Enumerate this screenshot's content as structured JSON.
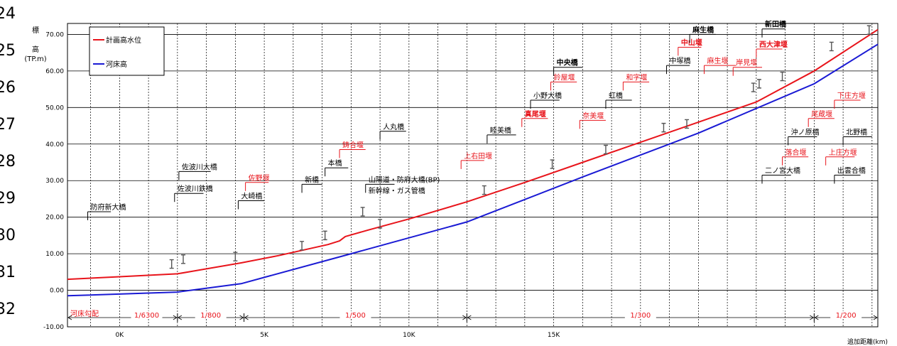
{
  "chart_data": {
    "type": "line",
    "row_numbers": [
      "24",
      "25",
      "26",
      "27",
      "28",
      "29",
      "30",
      "31",
      "32"
    ],
    "ylabel": [
      "標",
      "高",
      "(TP.m)"
    ],
    "xlabel": "追加距離(km)",
    "ylim": [
      -10,
      73
    ],
    "xlim": [
      -1.8,
      26.2
    ],
    "yticks": [
      {
        "value": 70,
        "label": "70.00"
      },
      {
        "value": 60,
        "label": "60.00"
      },
      {
        "value": 50,
        "label": "50.00"
      },
      {
        "value": 40,
        "label": "40.00"
      },
      {
        "value": 30,
        "label": "30.00"
      },
      {
        "value": 20,
        "label": "20.00"
      },
      {
        "value": 10,
        "label": "10.00"
      },
      {
        "value": 0,
        "label": "0.00"
      },
      {
        "value": -10,
        "label": "-10.00"
      }
    ],
    "xticks": [
      {
        "value": 0,
        "label": "0K"
      },
      {
        "value": 5,
        "label": "5K"
      },
      {
        "value": 10,
        "label": "10K"
      },
      {
        "value": 15,
        "label": "15K"
      }
    ],
    "grid": true,
    "legend_position": "top-left",
    "colors": {
      "planned": "#e8141b",
      "bed": "#1a1ad4",
      "red_label": "#e8141b"
    },
    "series": [
      {
        "name": "計画高水位",
        "color": "#e8141b",
        "x": [
          -1.8,
          0,
          2,
          4.2,
          5.5,
          7.2,
          7.6,
          7.8,
          8.6,
          10,
          12,
          14,
          16,
          18,
          20,
          22,
          24,
          26.2
        ],
        "y": [
          3.0,
          3.7,
          4.5,
          7.5,
          9.5,
          12.5,
          13.5,
          14.7,
          16.5,
          19.5,
          24.2,
          29.5,
          35,
          40.5,
          46,
          51.5,
          60,
          71.3
        ]
      },
      {
        "name": "河床高",
        "color": "#1a1ad4",
        "x": [
          -1.8,
          2,
          4.2,
          8,
          12,
          16,
          20,
          24,
          26.2
        ],
        "y": [
          -1.5,
          -0.5,
          1.8,
          10,
          18.7,
          31,
          43,
          56.5,
          67.3
        ]
      }
    ],
    "gradient_segments": [
      {
        "label": "河床勾配",
        "from": -1.8,
        "to": -0.4,
        "show_line": false
      },
      {
        "label": "1/6300",
        "from": -1.8,
        "to": 2,
        "show_line": true
      },
      {
        "label": "1/800",
        "from": 2,
        "to": 4.3,
        "show_line": true
      },
      {
        "label": "1/500",
        "from": 4.3,
        "to": 12,
        "show_line": true
      },
      {
        "label": "1/300",
        "from": 12,
        "to": 24,
        "show_line": true
      },
      {
        "label": "1/200",
        "from": 24,
        "to": 26.2,
        "show_line": true
      }
    ],
    "annotations": [
      {
        "text": "防府新大橋",
        "x": -1.1,
        "y": 21.5,
        "len": 0.8,
        "bold": false,
        "red": false
      },
      {
        "text": "佐波川鉄橋",
        "x": 1.9,
        "y": 26.5,
        "len": 1.0,
        "bold": false,
        "red": false
      },
      {
        "text": "佐波川大橋",
        "x": 2.05,
        "y": 32.5,
        "len": 1.1,
        "bold": false,
        "red": false
      },
      {
        "text": "大崎橋",
        "x": 4.1,
        "y": 24.5,
        "len": 0.9,
        "bold": false,
        "red": false
      },
      {
        "text": "佐野堰",
        "x": 4.35,
        "y": 29.5,
        "len": 0.8,
        "bold": false,
        "red": true
      },
      {
        "text": "新橋",
        "x": 6.3,
        "y": 29.0,
        "len": 0.7,
        "bold": false,
        "red": false
      },
      {
        "text": "本橋",
        "x": 7.1,
        "y": 33.5,
        "len": 0.8,
        "bold": false,
        "red": false
      },
      {
        "text": "鋳合堰",
        "x": 7.6,
        "y": 38.5,
        "len": 0.9,
        "bold": false,
        "red": true
      },
      {
        "text": "人丸橋",
        "x": 9.0,
        "y": 43.5,
        "len": 0.9,
        "bold": false,
        "red": false
      },
      {
        "text": "山陽道・防府大橋(BP)",
        "x": 8.5,
        "y": 29.0,
        "len": 1.0,
        "bold": false,
        "red": false
      },
      {
        "text": "新幹線・ガス管橋",
        "x": 8.5,
        "y": 26.0,
        "len": 0,
        "bold": false,
        "red": false
      },
      {
        "text": "上右田堰",
        "x": 11.8,
        "y": 35.5,
        "len": 0.8,
        "bold": false,
        "red": true
      },
      {
        "text": "睦美橋",
        "x": 12.7,
        "y": 42.5,
        "len": 1.0,
        "bold": false,
        "red": false
      },
      {
        "text": "真尾堰",
        "x": 13.9,
        "y": 47.0,
        "len": 0.9,
        "bold": true,
        "red": true
      },
      {
        "text": "小野大橋",
        "x": 14.2,
        "y": 52.0,
        "len": 1.0,
        "bold": false,
        "red": false
      },
      {
        "text": "鈴屋堰",
        "x": 14.9,
        "y": 57.0,
        "len": 0.9,
        "bold": false,
        "red": true
      },
      {
        "text": "中央橋",
        "x": 15.0,
        "y": 61.0,
        "len": 1.0,
        "bold": true,
        "red": false
      },
      {
        "text": "奈美堰",
        "x": 15.9,
        "y": 46.5,
        "len": 0.9,
        "bold": false,
        "red": true
      },
      {
        "text": "虹橋",
        "x": 16.8,
        "y": 52.0,
        "len": 0.9,
        "bold": false,
        "red": false
      },
      {
        "text": "和字堰",
        "x": 17.4,
        "y": 57.0,
        "len": 0.9,
        "bold": false,
        "red": true
      },
      {
        "text": "中塚橋",
        "x": 18.9,
        "y": 61.5,
        "len": 0.8,
        "bold": false,
        "red": false
      },
      {
        "text": "中山堰",
        "x": 19.3,
        "y": 66.5,
        "len": 0.8,
        "bold": true,
        "red": true
      },
      {
        "text": "麻生橋",
        "x": 19.7,
        "y": 70.0,
        "len": 0.9,
        "bold": true,
        "red": false
      },
      {
        "text": "麻生堰",
        "x": 20.2,
        "y": 61.5,
        "len": 1.1,
        "bold": false,
        "red": true
      },
      {
        "text": "岸見堰",
        "x": 21.2,
        "y": 61.0,
        "len": 1.0,
        "bold": false,
        "red": true
      },
      {
        "text": "西大津堰",
        "x": 22.0,
        "y": 66.0,
        "len": 0.9,
        "bold": true,
        "red": true
      },
      {
        "text": "新田橋",
        "x": 22.2,
        "y": 71.5,
        "len": 0.8,
        "bold": true,
        "red": false
      },
      {
        "text": "沖ノ原橋",
        "x": 23.1,
        "y": 42.0,
        "len": 1.0,
        "bold": false,
        "red": false
      },
      {
        "text": "落合堰",
        "x": 22.9,
        "y": 36.5,
        "len": 0.9,
        "bold": false,
        "red": true
      },
      {
        "text": "二ノ宮大橋",
        "x": 22.2,
        "y": 31.5,
        "len": 1.0,
        "bold": false,
        "red": false
      },
      {
        "text": "尾蔵堰",
        "x": 23.8,
        "y": 47.0,
        "len": 0.9,
        "bold": false,
        "red": true
      },
      {
        "text": "下庄方堰",
        "x": 24.7,
        "y": 52.0,
        "len": 0.9,
        "bold": false,
        "red": true
      },
      {
        "text": "北野橋",
        "x": 25.0,
        "y": 42.0,
        "len": 1.0,
        "bold": false,
        "red": false
      },
      {
        "text": "上庄方堰",
        "x": 24.4,
        "y": 36.5,
        "len": 1.0,
        "bold": false,
        "red": true
      },
      {
        "text": "出雲合橋",
        "x": 24.7,
        "y": 31.5,
        "len": 0.9,
        "bold": false,
        "red": false
      }
    ],
    "bridge_markers": [
      {
        "x": 1.8,
        "y": 7.2
      },
      {
        "x": 2.2,
        "y": 8.5
      },
      {
        "x": 4.0,
        "y": 9.2
      },
      {
        "x": 6.3,
        "y": 12.2
      },
      {
        "x": 7.1,
        "y": 15.0
      },
      {
        "x": 8.4,
        "y": 21.5
      },
      {
        "x": 9.0,
        "y": 18.2
      },
      {
        "x": 12.6,
        "y": 27.4
      },
      {
        "x": 14.95,
        "y": 34.5
      },
      {
        "x": 16.8,
        "y": 38.5
      },
      {
        "x": 18.8,
        "y": 44.5
      },
      {
        "x": 19.6,
        "y": 45.5
      },
      {
        "x": 21.9,
        "y": 55.5
      },
      {
        "x": 22.1,
        "y": 56.5
      },
      {
        "x": 22.9,
        "y": 58.5
      },
      {
        "x": 24.6,
        "y": 66.7
      },
      {
        "x": 25.9,
        "y": 71.2
      }
    ]
  }
}
